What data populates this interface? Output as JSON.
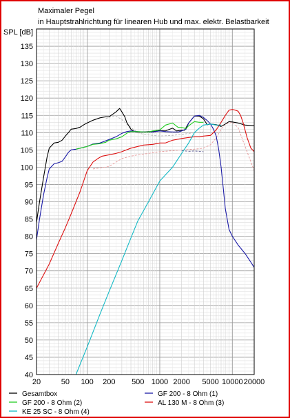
{
  "chart_data": {
    "type": "line",
    "title": "Maximaler Pegel",
    "subtitle": "in Hauptstrahlrichtung für linearen Hub und max. elektr. Belastbarkeit",
    "ylabel": "SPL [dB]",
    "xlabel": "",
    "xscale": "log",
    "xlim": [
      20,
      20000
    ],
    "ylim": [
      40,
      140
    ],
    "x_ticks": [
      20,
      50,
      100,
      200,
      500,
      1000,
      2000,
      5000,
      10000,
      20000
    ],
    "x_tick_labels": [
      "20",
      "50",
      "100",
      "200",
      "500",
      "1000",
      "2000",
      "5000",
      "10000",
      "20000"
    ],
    "y_ticks": [
      40,
      45,
      50,
      55,
      60,
      65,
      70,
      75,
      80,
      85,
      90,
      95,
      100,
      105,
      110,
      115,
      120,
      125,
      130,
      135
    ],
    "grid": true,
    "legend_position": "bottom",
    "series": [
      {
        "name": "Gesamtbox",
        "color": "#000000",
        "style": "solid",
        "x": [
          20,
          22,
          25,
          28,
          30,
          35,
          40,
          45,
          50,
          55,
          60,
          70,
          80,
          90,
          100,
          120,
          150,
          180,
          200,
          250,
          280,
          300,
          330,
          350,
          400,
          450,
          500,
          600,
          700,
          800,
          1000,
          1200,
          1500,
          1700,
          2000,
          2200,
          2500,
          3000,
          3500,
          4000,
          4500,
          5000,
          6000,
          7000,
          8000,
          9000,
          10000,
          12000,
          15000,
          20000
        ],
        "values": [
          84,
          90,
          97,
          103,
          105.5,
          107,
          107.2,
          107.8,
          109,
          110,
          111,
          111.2,
          111.6,
          112.3,
          112.8,
          113.6,
          114.3,
          114.6,
          114.6,
          116,
          117,
          116,
          114.6,
          113,
          111,
          110.3,
          110.2,
          110.2,
          110.3,
          110.3,
          110.6,
          110.5,
          111.3,
          110.5,
          110.7,
          110.7,
          112.8,
          114.8,
          114.8,
          114,
          112.3,
          112.5,
          112.3,
          111.8,
          112.5,
          113.2,
          113.1,
          112.8,
          112.2,
          112
        ]
      },
      {
        "name": "GF 200 - 8 Ohm (1)",
        "color": "#1a1aa6",
        "style": "solid",
        "x": [
          20,
          22,
          25,
          28,
          30,
          35,
          40,
          45,
          50,
          55,
          60,
          70,
          80,
          100,
          120,
          150,
          200,
          250,
          300,
          350,
          400,
          500,
          600,
          700,
          800,
          1000,
          1200,
          1500,
          1800,
          2000,
          2300,
          2500,
          3000,
          3500,
          4000,
          4500,
          5000,
          5500,
          6000,
          6500,
          7000,
          7500,
          8000,
          9000,
          10000,
          12000,
          15000,
          18000,
          20000
        ],
        "values": [
          79,
          85,
          92,
          97,
          99.5,
          101,
          101.3,
          101.7,
          103,
          104.3,
          105,
          105.2,
          105.5,
          106,
          106.7,
          107,
          108,
          108.8,
          109.8,
          110.3,
          110.5,
          110.3,
          110.2,
          110.2,
          110.2,
          110.5,
          110.3,
          110.2,
          110.2,
          110.5,
          111,
          112.8,
          114.8,
          115,
          114.4,
          113.5,
          112.5,
          111,
          109,
          105,
          100,
          94,
          88,
          82,
          80,
          77.5,
          75,
          72.5,
          71
        ]
      },
      {
        "name": "GF 200 - 8 Ohm (2)",
        "color": "#22cc22",
        "style": "solid",
        "x": [
          70,
          80,
          100,
          120,
          150,
          180,
          200,
          250,
          300,
          350,
          400,
          500,
          600,
          700,
          800,
          1000,
          1200,
          1500,
          1800,
          2000,
          2300,
          2500,
          3000,
          3500,
          4000
        ],
        "values": [
          105.2,
          105.5,
          106,
          106.6,
          106.8,
          107.2,
          107.8,
          108.2,
          108.8,
          109.8,
          110.3,
          110.3,
          110.2,
          110.2,
          110.5,
          110.8,
          112.2,
          112.8,
          111.5,
          111.5,
          111.2,
          112,
          113.2,
          113,
          113
        ]
      },
      {
        "name": "AL 130 M - 8 Ohm (3)",
        "color": "#dd1111",
        "style": "solid",
        "x": [
          20,
          30,
          40,
          50,
          60,
          80,
          100,
          120,
          140,
          160,
          200,
          250,
          300,
          400,
          500,
          600,
          700,
          800,
          1000,
          1200,
          1500,
          2000,
          2500,
          3000,
          3500,
          4000,
          5000,
          6000,
          7000,
          8000,
          9000,
          10000,
          11000,
          12000,
          13000,
          14000,
          16000,
          18000,
          20000
        ],
        "values": [
          65,
          72,
          78,
          82.5,
          86.5,
          93,
          99,
          101.5,
          102.5,
          103.2,
          103.6,
          104,
          104.5,
          105.5,
          106,
          106.4,
          106.5,
          106.6,
          107,
          107,
          107.8,
          108.3,
          108.6,
          108.8,
          108.8,
          109,
          109.2,
          110.8,
          113,
          115,
          116.5,
          116.7,
          116.5,
          116.2,
          115,
          113,
          108.5,
          105.5,
          104.5
        ]
      },
      {
        "name": "KE 25 SC - 8 Ohm (4)",
        "color": "#11b8c4",
        "style": "solid",
        "x": [
          70,
          100,
          150,
          200,
          300,
          400,
          500,
          700,
          1000,
          1500,
          2000,
          2500,
          3000,
          3500,
          4000,
          5000,
          6000,
          7000
        ],
        "values": [
          40,
          48,
          57.5,
          64,
          73,
          79.5,
          84.5,
          90,
          96,
          100,
          104,
          107,
          110,
          111.3,
          112.2,
          112.5,
          112.2,
          112.2
        ]
      },
      {
        "name": "",
        "color": "#b8b8b8",
        "style": "dashed",
        "x": [
          180,
          200,
          250,
          300,
          350,
          400,
          500,
          600,
          800,
          1000,
          1500,
          2000,
          3000,
          4000
        ],
        "values": [
          114,
          114.5,
          114.8,
          113.8,
          112.5,
          111.5,
          110,
          109.5,
          109.2,
          109,
          109.2,
          109.5,
          110,
          110.2
        ]
      },
      {
        "name": "",
        "color": "#e8a0a0",
        "style": "dashed",
        "x": [
          120,
          150,
          200,
          250,
          300,
          400,
          500,
          700,
          1000,
          1500,
          2000,
          3000,
          4000,
          5000,
          6000,
          7000,
          8000,
          10000,
          12000,
          15000,
          20000
        ],
        "values": [
          99.5,
          99.8,
          100.2,
          101.5,
          102.5,
          103.2,
          103.6,
          104,
          104.5,
          104.8,
          105,
          105.2,
          105.5,
          106.5,
          108.5,
          111,
          112.5,
          113,
          111.5,
          106,
          99
        ]
      },
      {
        "name": "",
        "color": "#6b6b9e",
        "style": "dashed",
        "x": [
          2000,
          2500,
          3000,
          3500,
          4000
        ],
        "values": [
          104.8,
          104.6,
          104.7,
          104.6,
          104.5
        ]
      }
    ],
    "legend": [
      {
        "label": "Gesamtbox",
        "color": "#000000"
      },
      {
        "label": "GF 200 - 8 Ohm (1)",
        "color": "#1a1aa6"
      },
      {
        "label": "GF 200 - 8 Ohm (2)",
        "color": "#22cc22"
      },
      {
        "label": "AL 130 M - 8 Ohm (3)",
        "color": "#dd1111"
      },
      {
        "label": "KE 25 SC - 8 Ohm    (4)",
        "color": "#11b8c4"
      }
    ]
  }
}
